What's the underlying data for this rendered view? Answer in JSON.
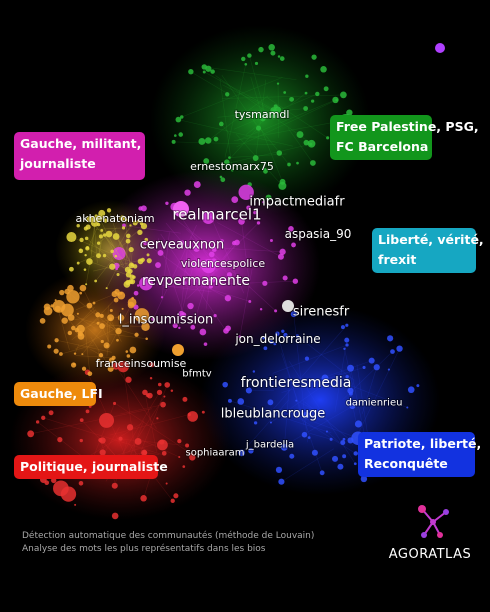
{
  "communities": [
    {
      "lines": [
        "Gauche, militant,",
        "journaliste"
      ]
    },
    {
      "lines": [
        "Free Palestine, PSG,",
        "FC Barcelona"
      ]
    },
    {
      "lines": [
        "Liberté, vérité,",
        "frexit"
      ]
    },
    {
      "lines": [
        "Gauche, LFI"
      ]
    },
    {
      "lines": [
        "Politique, journaliste"
      ]
    },
    {
      "lines": [
        "Patriote, liberté,",
        "Reconquête"
      ]
    }
  ],
  "nodes": [
    "tysmamdl",
    "ernestomarx75",
    "impactmediafr",
    "realmarcel1",
    "aspasia_90",
    "akhenatoniam",
    "cerveauxnon",
    "violencespolice",
    "revpermanente",
    "sirenesfr",
    "l_insoumission",
    "jon_delorraine",
    "franceinsoumise",
    "bfmtv",
    "frontieresmedia",
    "damienrieu",
    "lbleublancrouge",
    "j_bardella",
    "sophiaaram"
  ],
  "footer": {
    "lines": [
      "Détection automatique des communautés (méthode de Louvain)",
      "Analyse des mots les plus représentatifs dans les bios"
    ]
  },
  "logo": "AGORATLAS"
}
